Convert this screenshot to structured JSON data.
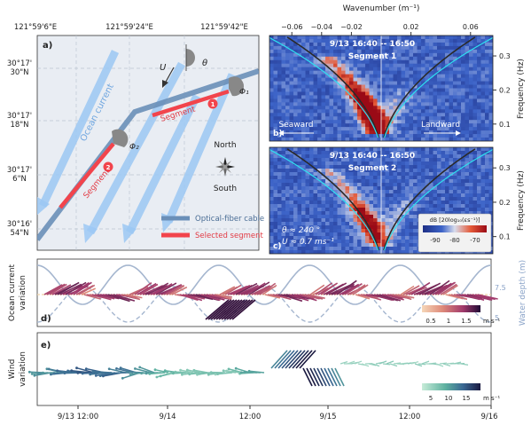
{
  "map": {
    "panel_label": "a)",
    "top_lon_labels": [
      "121°59'6\"E",
      "121°59'24\"E",
      "121°59'42\"E"
    ],
    "lat_labels": [
      [
        "30°17'",
        "30\"N"
      ],
      [
        "30°17'",
        "18\"N"
      ],
      [
        "30°17'",
        "6\"N"
      ],
      [
        "30°16'",
        "54\"N"
      ]
    ],
    "current_label": "Ocean current",
    "segment1_label": "Segment",
    "segment1_num": "1",
    "segment2_label": "Segment",
    "segment2_num": "2",
    "u_label": "U",
    "theta_label": "θ",
    "phi1_label": "Φ₁",
    "phi2_label": "Φ₂",
    "north": "North",
    "south": "South",
    "legend": [
      "Optical-fiber cable",
      "Selected segment"
    ],
    "colors": {
      "cable": "#6a8fb8",
      "segment": "#f2444c",
      "current": "#9cc8f4",
      "map_bg": "#e9edf3"
    }
  },
  "spectra": {
    "xlabel": "Wavenumber (m⁻¹)",
    "ylabel": "Frequency (Hz)",
    "panel_b": {
      "label": "b)",
      "time": "9/13 16:40 -- 16:50",
      "segment": "Segment 1",
      "seaward": "Seaward",
      "landward": "Landward"
    },
    "panel_c": {
      "label": "c)",
      "time": "9/13 16:40 -- 16:50",
      "segment": "Segment 2",
      "theta_text": "θ ≈ 240 °",
      "u_text": "U ≈ 0.7 ms⁻¹"
    },
    "colorbar_title": "dB [20log₁₀(εs⁻¹)]",
    "colorbar_ticks": [
      "-90",
      "-80",
      "-70"
    ]
  },
  "ocean": {
    "panel_label": "d)",
    "ylabel_left": "Ocean current variation",
    "ylabel_right": "Water depth (m)",
    "right_ticks": [
      "7.5",
      "5"
    ],
    "colorbar_ticks": [
      "0.5",
      "1",
      "1.5"
    ],
    "colorbar_unit": "m s⁻¹"
  },
  "wind": {
    "panel_label": "e)",
    "ylabel": "Wind variation",
    "colorbar_ticks": [
      "5",
      "10",
      "15"
    ],
    "colorbar_unit": "m s⁻¹",
    "time_ticks": [
      "9/13  12:00",
      "9/14",
      "12:00",
      "9/15",
      "12:00",
      "9/16"
    ]
  },
  "chart_data": [
    {
      "type": "heatmap",
      "title": "9/13 16:40 -- 16:50 Segment 1",
      "xlabel": "Wavenumber (m⁻¹)",
      "ylabel": "Frequency (Hz)",
      "x_ticks": [
        -0.06,
        -0.04,
        -0.02,
        0.02,
        0.06
      ],
      "y_ticks": [
        0.1,
        0.2,
        0.3
      ],
      "xlim": [
        -0.075,
        0.075
      ],
      "ylim": [
        0.05,
        0.36
      ],
      "energy_ridge": "seaward (negative wavenumber)"
    },
    {
      "type": "heatmap",
      "title": "9/13 16:40 -- 16:50 Segment 2",
      "xlabel": "Wavenumber (m⁻¹)",
      "ylabel": "Frequency (Hz)",
      "x_ticks": [
        -0.06,
        -0.04,
        -0.02,
        0.02,
        0.06
      ],
      "y_ticks": [
        0.1,
        0.2,
        0.3
      ],
      "xlim": [
        -0.075,
        0.075
      ],
      "ylim": [
        0.05,
        0.36
      ],
      "annotations": [
        "θ ≈ 240 °",
        "U ≈ 0.7 ms⁻¹"
      ],
      "colorbar": {
        "label": "dB [20log₁₀(εs⁻¹)]",
        "range": [
          -95,
          -65
        ]
      }
    },
    {
      "type": "line",
      "title": "Ocean current variation",
      "ylabel_right": "Water depth (m)",
      "y_ticks_right": [
        5,
        7.5
      ],
      "x_ticks": [
        "9/13 12:00",
        "9/14",
        "12:00",
        "9/15",
        "12:00",
        "9/16"
      ],
      "tide_cycles": 5,
      "current_speed_range": [
        0.2,
        1.6
      ]
    },
    {
      "type": "scatter",
      "title": "Wind variation",
      "x_ticks": [
        "9/13 12:00",
        "9/14",
        "12:00",
        "9/15",
        "12:00",
        "9/16"
      ],
      "wind_speed_range": [
        2,
        16
      ]
    }
  ]
}
